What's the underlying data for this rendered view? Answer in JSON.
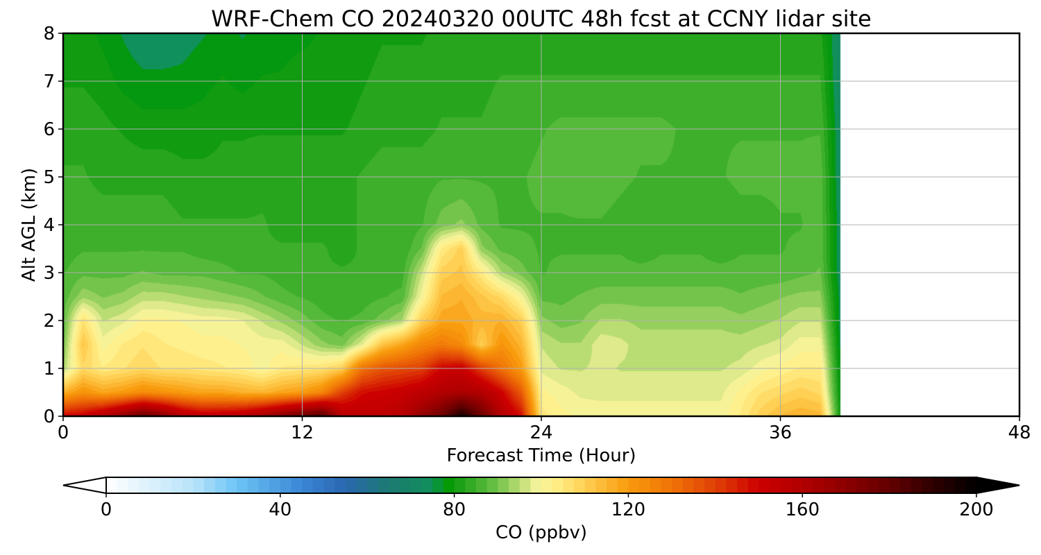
{
  "chart_data": {
    "type": "heatmap",
    "title": "WRF-Chem CO  20240320 00UTC 48h fcst at CCNY lidar site",
    "xlabel": "Forecast Time (Hour)",
    "ylabel": "Alt AGL (km)",
    "xlim": [
      0,
      48
    ],
    "ylim": [
      0,
      8
    ],
    "xticks": [
      0,
      12,
      24,
      36,
      48
    ],
    "yticks": [
      0,
      1,
      2,
      3,
      4,
      5,
      6,
      7,
      8
    ],
    "grid": true,
    "data_end_hour": 39,
    "x_hours": [
      0,
      1,
      2,
      3,
      4,
      5,
      6,
      7,
      8,
      9,
      10,
      11,
      12,
      13,
      14,
      15,
      16,
      17,
      18,
      19,
      20,
      21,
      22,
      23,
      24,
      25,
      26,
      27,
      28,
      29,
      30,
      31,
      32,
      33,
      34,
      35,
      36,
      37,
      38,
      39
    ],
    "y_km": [
      0,
      0.5,
      1,
      1.5,
      2,
      2.5,
      3,
      3.5,
      4,
      5,
      6,
      7,
      8
    ],
    "values": [
      [
        150,
        116,
        94,
        90,
        88,
        87,
        86,
        85,
        84,
        84,
        83,
        81,
        80
      ],
      [
        152,
        122,
        108,
        112,
        106,
        93,
        88,
        86,
        85,
        84,
        83,
        81,
        80
      ],
      [
        160,
        118,
        104,
        100,
        96,
        91,
        88,
        86,
        85,
        83,
        82,
        80,
        78
      ],
      [
        170,
        120,
        106,
        104,
        98,
        92,
        88,
        86,
        85,
        83,
        81,
        78,
        76
      ],
      [
        180,
        124,
        108,
        106,
        102,
        95,
        89,
        86,
        85,
        83,
        80,
        77,
        74
      ],
      [
        172,
        122,
        106,
        104,
        102,
        95,
        88,
        86,
        85,
        83,
        80,
        77,
        74
      ],
      [
        160,
        120,
        106,
        103,
        101,
        94,
        88,
        86,
        84,
        82,
        80,
        77,
        75
      ],
      [
        155,
        118,
        105,
        102,
        100,
        93,
        88,
        85,
        84,
        82,
        80,
        78,
        76
      ],
      [
        156,
        118,
        104,
        102,
        100,
        92,
        87,
        85,
        84,
        82,
        81,
        79,
        77
      ],
      [
        158,
        116,
        103,
        101,
        99,
        91,
        86,
        85,
        84,
        82,
        81,
        78,
        76
      ],
      [
        165,
        115,
        100,
        100,
        96,
        89,
        86,
        84,
        84,
        83,
        81,
        79,
        77
      ],
      [
        172,
        118,
        104,
        100,
        93,
        87,
        85,
        84,
        83,
        83,
        81,
        79,
        78
      ],
      [
        180,
        120,
        105,
        96,
        90,
        86,
        84,
        84,
        83,
        83,
        81,
        80,
        78
      ],
      [
        185,
        125,
        106,
        92,
        87,
        85,
        84,
        84,
        83,
        83,
        81,
        80,
        79
      ],
      [
        158,
        140,
        110,
        90,
        86,
        84,
        84,
        83,
        83,
        83,
        81,
        80,
        79
      ],
      [
        156,
        148,
        130,
        98,
        87,
        85,
        84,
        84,
        84,
        84,
        82,
        81,
        80
      ],
      [
        155,
        150,
        136,
        112,
        90,
        86,
        85,
        84,
        84,
        85,
        83,
        82,
        81
      ],
      [
        158,
        152,
        138,
        118,
        94,
        87,
        85,
        84,
        84,
        85,
        83,
        82,
        81
      ],
      [
        168,
        156,
        140,
        125,
        110,
        100,
        96,
        89,
        86,
        85,
        83,
        82,
        81
      ],
      [
        178,
        160,
        150,
        128,
        118,
        114,
        110,
        104,
        90,
        86,
        84,
        83,
        82
      ],
      [
        195,
        162,
        152,
        124,
        118,
        116,
        112,
        110,
        92,
        86,
        84,
        83,
        82
      ],
      [
        178,
        160,
        140,
        110,
        115,
        112,
        104,
        92,
        88,
        86,
        84,
        83,
        82
      ],
      [
        160,
        150,
        130,
        122,
        116,
        108,
        94,
        88,
        86,
        86,
        85,
        84,
        82
      ],
      [
        148,
        135,
        120,
        115,
        110,
        100,
        90,
        87,
        86,
        86,
        85,
        84,
        82
      ],
      [
        105,
        102,
        98,
        96,
        92,
        88,
        86,
        86,
        86,
        87,
        86,
        84,
        82
      ],
      [
        102,
        100,
        96,
        94,
        90,
        88,
        87,
        86,
        86,
        87,
        87,
        84,
        82
      ],
      [
        101,
        98,
        96,
        94,
        91,
        89,
        87,
        86,
        86,
        88,
        87,
        84,
        82
      ],
      [
        100,
        98,
        97,
        98,
        94,
        90,
        87,
        86,
        86,
        88,
        87,
        84,
        82
      ],
      [
        100,
        98,
        96,
        97,
        94,
        90,
        87,
        86,
        85,
        87,
        87,
        84,
        82
      ],
      [
        100,
        98,
        96,
        95,
        93,
        90,
        87,
        85,
        84,
        86,
        87,
        84,
        82
      ],
      [
        100,
        98,
        96,
        95,
        93,
        90,
        87,
        86,
        85,
        86,
        87,
        84,
        82
      ],
      [
        100,
        98,
        96,
        95,
        93,
        90,
        87,
        86,
        85,
        86,
        86,
        84,
        82
      ],
      [
        100,
        98,
        96,
        95,
        93,
        90,
        87,
        86,
        85,
        86,
        86,
        84,
        82
      ],
      [
        100,
        98,
        96,
        95,
        93,
        90,
        87,
        85,
        84,
        86,
        86,
        84,
        82
      ],
      [
        104,
        102,
        97,
        95,
        92,
        89,
        87,
        86,
        85,
        87,
        86,
        84,
        82
      ],
      [
        110,
        106,
        100,
        96,
        93,
        90,
        87,
        86,
        85,
        87,
        86,
        84,
        82
      ],
      [
        114,
        108,
        102,
        97,
        94,
        91,
        87,
        86,
        86,
        87,
        86,
        84,
        82
      ],
      [
        116,
        110,
        104,
        100,
        96,
        92,
        88,
        87,
        86,
        87,
        86,
        84,
        82
      ],
      [
        115,
        108,
        104,
        100,
        96,
        92,
        89,
        88,
        88,
        88,
        86,
        84,
        82
      ],
      [
        80,
        78,
        77,
        76,
        75,
        75,
        74,
        74,
        74,
        73,
        73,
        72,
        72
      ]
    ],
    "colorbar": {
      "label": "CO  (ppbv)",
      "min": 0,
      "max": 200,
      "ticks": [
        0,
        40,
        80,
        120,
        160,
        200
      ],
      "extend": "both",
      "colors": {
        "0": "#ffffff",
        "20": "#b9e3fa",
        "30": "#6cc4f5",
        "45": "#3a86d6",
        "55": "#2a66b0",
        "65": "#1c7a72",
        "75": "#10905a",
        "78": "#009a00",
        "80": "#109b10",
        "84": "#35ab25",
        "88": "#5abb3c",
        "92": "#8ecc59",
        "96": "#c9e27c",
        "99": "#f3f29c",
        "103": "#fff08a",
        "110": "#ffd054",
        "120": "#f89b0d",
        "130": "#f07306",
        "140": "#e04006",
        "150": "#cc0000",
        "160": "#b20000",
        "170": "#8c0000",
        "180": "#640000",
        "190": "#2e0000",
        "200": "#000000"
      }
    }
  }
}
